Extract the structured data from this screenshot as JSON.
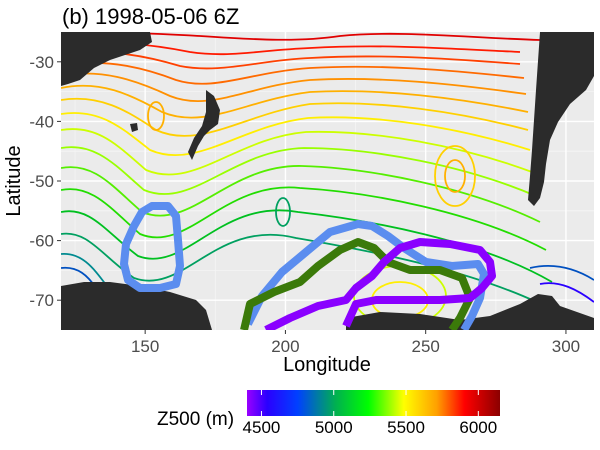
{
  "chart_data": {
    "type": "contour",
    "title": "(b) 1998-05-06 6Z",
    "xlabel": "Longitude",
    "ylabel": "Latitude",
    "xlim": [
      120,
      310
    ],
    "ylim": [
      -75,
      -25
    ],
    "x_ticks": [
      150,
      200,
      250,
      300
    ],
    "y_ticks": [
      -30,
      -40,
      -50,
      -60,
      -70
    ],
    "grid": true,
    "background": "#ebebeb",
    "variable": "Z500 (m)",
    "legend": {
      "title": "Z500 (m)",
      "position": "bottom",
      "ticks": [
        4500,
        5000,
        5500,
        6000
      ],
      "range": [
        4400,
        6150
      ],
      "colors": [
        "#9a00ff",
        "#2a00ff",
        "#0040ff",
        "#00b050",
        "#00ff00",
        "#ffff00",
        "#ffa000",
        "#ff0000",
        "#8b0000"
      ]
    },
    "regions": [
      {
        "color": "#5b8def",
        "lon": [
          127,
          160
        ],
        "lat": [
          -70,
          -55
        ]
      },
      {
        "color": "#5b8def",
        "lon": [
          188,
          268
        ],
        "lat": [
          -75,
          -60
        ]
      },
      {
        "color": "#3b7a0a",
        "lon": [
          180,
          262
        ],
        "lat": [
          -75,
          -62
        ]
      },
      {
        "color": "#8a00ff",
        "lon": [
          190,
          272
        ],
        "lat": [
          -75,
          -62
        ]
      }
    ]
  }
}
